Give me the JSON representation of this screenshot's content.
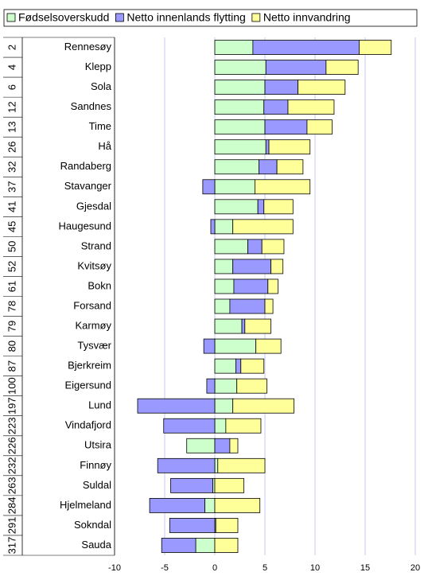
{
  "chart_data": {
    "type": "stacked-barh",
    "categories": [
      "Rennesøy",
      "Klepp",
      "Sola",
      "Sandnes",
      "Time",
      "Hå",
      "Randaberg",
      "Stavanger",
      "Gjesdal",
      "Haugesund",
      "Strand",
      "Kvitsøy",
      "Bokn",
      "Forsand",
      "Karmøy",
      "Tysvær",
      "Bjerkreim",
      "Eigersund",
      "Lund",
      "Vindafjord",
      "Utsira",
      "Finnøy",
      "Suldal",
      "Hjelmeland",
      "Sokndal",
      "Sauda"
    ],
    "ranks": [
      "2",
      "4",
      "6",
      "12",
      "13",
      "26",
      "32",
      "37",
      "41",
      "45",
      "50",
      "52",
      "61",
      "78",
      "79",
      "80",
      "87",
      "100",
      "197",
      "223",
      "226",
      "232",
      "263",
      "284",
      "291",
      "317"
    ],
    "series": [
      {
        "name": "Fødselsoverskudd",
        "color": "#ccffcc",
        "values": [
          3.8,
          5.1,
          5.0,
          4.9,
          5.0,
          5.1,
          4.4,
          4.0,
          4.3,
          1.8,
          3.3,
          1.8,
          1.9,
          1.5,
          2.7,
          4.1,
          2.1,
          2.2,
          1.8,
          1.1,
          -2.8,
          0.3,
          -0.2,
          -1.0,
          0.1,
          -1.9
        ]
      },
      {
        "name": "Netto innenlands flytting",
        "color": "#9999ff",
        "values": [
          10.6,
          6.0,
          3.3,
          2.4,
          4.2,
          0.3,
          1.8,
          -1.2,
          0.6,
          -0.4,
          1.4,
          3.8,
          3.4,
          3.5,
          0.3,
          -1.1,
          0.5,
          -0.8,
          -7.7,
          -5.1,
          1.5,
          -5.7,
          -4.2,
          -5.5,
          -4.5,
          -3.4
        ]
      },
      {
        "name": "Netto innvandring",
        "color": "#ffff99",
        "values": [
          3.2,
          3.2,
          4.7,
          4.6,
          2.5,
          4.1,
          2.6,
          5.5,
          2.9,
          6.0,
          2.2,
          1.2,
          1.0,
          0.8,
          2.6,
          2.5,
          2.3,
          3.0,
          6.1,
          3.5,
          0.8,
          4.7,
          2.9,
          4.5,
          2.2,
          2.3
        ]
      }
    ],
    "xlim": [
      -10,
      20
    ],
    "xticks": [
      -10,
      -5,
      0,
      5,
      10,
      15,
      20
    ],
    "grid": true
  }
}
